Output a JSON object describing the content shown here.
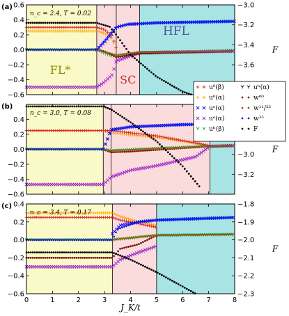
{
  "chart_data": {
    "type": "scatter",
    "shared_x": {
      "label": "J_K/t",
      "range": [
        0,
        8
      ],
      "ticks": [
        0,
        1,
        2,
        3,
        4,
        5,
        6,
        7,
        8
      ],
      "tick_labels": [
        "0",
        "1",
        "2",
        "3",
        "4",
        "5",
        "6",
        "7",
        "8"
      ]
    },
    "legend": {
      "placement": "right of panel (a), overlapping panel (b)",
      "columns": [
        [
          {
            "key": "ub",
            "label": "u⁰(β)",
            "marker": "+",
            "color": "#d62728"
          },
          {
            "key": "ua0",
            "label": "u⁰(α)",
            "marker": "+",
            "color": "#ffa500"
          },
          {
            "key": "uea",
            "label": "uᵉ(α)",
            "marker": "x",
            "color": "#0000ff"
          },
          {
            "key": "ueb",
            "label": "uᵉ(α)",
            "marker": "x",
            "color": "#9b1ec8"
          },
          {
            "key": "uhb",
            "label": "uʰ(β)",
            "marker": "y",
            "color": "#2ca02c"
          }
        ],
        [
          {
            "key": "uha",
            "label": "uʰ(α)",
            "marker": "y",
            "color": "#000000"
          },
          {
            "key": "w00",
            "label": "w⁰⁰",
            "marker": "dot",
            "color": "#7b1111"
          },
          {
            "key": "w1122",
            "label": "w¹¹/²²",
            "marker": "dot",
            "color": "#806010"
          },
          {
            "key": "w33",
            "label": "w³³",
            "marker": "dot",
            "color": "#1020e0"
          },
          {
            "key": "F",
            "label": "F",
            "marker": "dot",
            "color": "#000000"
          }
        ]
      ]
    },
    "phase_colors": {
      "FL": "#fafac8",
      "SC": "#fadcdc",
      "HFL": "#a8e4e4"
    },
    "panels": [
      {
        "id": "a",
        "tag": "(a)",
        "params": "n_c = 2.4, T = 0.02",
        "ylim": [
          -0.6,
          0.6
        ],
        "yticks": [
          -0.6,
          -0.4,
          -0.2,
          0.0,
          0.2,
          0.4,
          0.6
        ],
        "ytick_labels": [
          "−0.6",
          "−0.4",
          "−0.2",
          "0.0",
          "0.2",
          "0.4",
          "0.6"
        ],
        "y2label": "F",
        "y2lim": [
          -3.9,
          -3.0
        ],
        "y2ticks": [
          -3.0,
          -3.2,
          -3.4,
          -3.6,
          -3.8
        ],
        "y2tick_labels": [
          "−3.0",
          "−3.2",
          "−3.4",
          "−3.6",
          "−3.8"
        ],
        "regions": [
          {
            "phase": "FL",
            "from": 0,
            "to": 2.7
          },
          {
            "phase": "SC",
            "from": 2.7,
            "to": 4.35
          },
          {
            "phase": "HFL",
            "from": 4.35,
            "to": 8
          }
        ],
        "extra_boundaries": [
          3.45
        ],
        "labels": [
          {
            "text": "FL*",
            "x": 1.3,
            "y": -0.32,
            "color": "#8a8a00"
          },
          {
            "text": "SC",
            "x": 3.9,
            "y": -0.45,
            "color": "#c03030"
          },
          {
            "text": "HFL",
            "x": 5.75,
            "y": 0.2,
            "color": "#5050a0"
          }
        ],
        "series": [
          {
            "key": "ua0",
            "points": [
              [
                0,
                0.25
              ],
              [
                2.7,
                0.25
              ],
              [
                3.0,
                0.22
              ],
              [
                3.3,
                0.15
              ],
              [
                3.45,
                0.0
              ]
            ]
          },
          {
            "key": "ub",
            "points": [
              [
                0,
                0.3
              ],
              [
                2.7,
                0.3
              ],
              [
                3.0,
                0.27
              ],
              [
                3.3,
                0.18
              ],
              [
                3.45,
                0.02
              ]
            ]
          },
          {
            "key": "uhb",
            "points": [
              [
                0,
                0.0
              ],
              [
                2.7,
                0.0
              ],
              [
                3.0,
                -0.05
              ],
              [
                3.45,
                -0.1
              ],
              [
                4.35,
                -0.05
              ],
              [
                8,
                -0.01
              ]
            ]
          },
          {
            "key": "uea",
            "points": [
              [
                2.7,
                0.0
              ],
              [
                3.0,
                0.1
              ],
              [
                3.45,
                0.3
              ],
              [
                3.9,
                0.34
              ],
              [
                5.0,
                0.36
              ],
              [
                8,
                0.38
              ]
            ]
          },
          {
            "key": "ueb",
            "points": [
              [
                0,
                -0.5
              ],
              [
                2.7,
                -0.5
              ],
              [
                3.0,
                -0.43
              ],
              [
                3.3,
                -0.33
              ],
              [
                3.45,
                -0.15
              ],
              [
                4.35,
                -0.04
              ],
              [
                5.5,
                -0.03
              ],
              [
                8,
                -0.02
              ]
            ]
          },
          {
            "key": "w00",
            "points": [
              [
                0,
                0.0
              ],
              [
                2.7,
                0.0
              ],
              [
                3.0,
                -0.02
              ],
              [
                3.45,
                -0.1
              ],
              [
                4.35,
                -0.05
              ],
              [
                8,
                -0.02
              ]
            ]
          },
          {
            "key": "w1122",
            "points": [
              [
                0,
                0.0
              ],
              [
                2.7,
                0.0
              ],
              [
                3.45,
                -0.07
              ],
              [
                4.35,
                -0.03
              ],
              [
                8,
                -0.02
              ]
            ]
          },
          {
            "key": "w33",
            "points": [
              [
                0,
                0.0
              ],
              [
                2.7,
                0.0
              ],
              [
                3.0,
                0.12
              ],
              [
                3.45,
                0.3
              ],
              [
                3.9,
                0.34
              ],
              [
                5.0,
                0.36
              ],
              [
                8,
                0.38
              ]
            ]
          }
        ],
        "free_energy": [
          [
            0,
            -3.18
          ],
          [
            2.7,
            -3.18
          ],
          [
            3.2,
            -3.22
          ],
          [
            3.45,
            -3.3
          ],
          [
            4.0,
            -3.5
          ],
          [
            5.0,
            -3.72
          ],
          [
            6.0,
            -3.87
          ],
          [
            6.35,
            -3.9
          ]
        ]
      },
      {
        "id": "b",
        "tag": "(b)",
        "params": "n_c = 3.0, T = 0.08",
        "ylim": [
          -0.6,
          0.6
        ],
        "yticks": [
          -0.6,
          -0.4,
          -0.2,
          0.0,
          0.2,
          0.4
        ],
        "ytick_labels": [
          "−0.6",
          "−0.4",
          "−0.2",
          "0.0",
          "0.2",
          "0.4"
        ],
        "y2label": "F",
        "y2lim": [
          -3.4,
          -2.5
        ],
        "y2ticks": [
          -2.6,
          -2.8,
          -3.0,
          -3.2
        ],
        "y2tick_labels": [
          "−2.6",
          "−2.8",
          "−3.0",
          "−3.2"
        ],
        "regions": [
          {
            "phase": "FL",
            "from": 0,
            "to": 2.95
          },
          {
            "phase": "SC",
            "from": 2.95,
            "to": 7.05
          },
          {
            "phase": "HFL",
            "from": 7.05,
            "to": 8
          }
        ],
        "extra_boundaries": [
          3.25
        ],
        "labels": [],
        "series": [
          {
            "key": "ua0",
            "points": [
              [
                0,
                0.25
              ],
              [
                2.95,
                0.25
              ],
              [
                3.25,
                0.22
              ],
              [
                5.0,
                0.16
              ],
              [
                6.5,
                0.08
              ],
              [
                7.05,
                0.04
              ],
              [
                8,
                0.04
              ]
            ]
          },
          {
            "key": "ub",
            "points": [
              [
                0,
                0.25
              ],
              [
                2.95,
                0.25
              ],
              [
                3.25,
                0.25
              ],
              [
                5.0,
                0.18
              ],
              [
                7.05,
                0.05
              ]
            ]
          },
          {
            "key": "uhb",
            "points": [
              [
                0,
                0.0
              ],
              [
                2.95,
                0.0
              ],
              [
                3.25,
                -0.02
              ],
              [
                5.0,
                0.01
              ],
              [
                7.05,
                0.04
              ],
              [
                8,
                0.05
              ]
            ]
          },
          {
            "key": "uea",
            "points": [
              [
                2.95,
                0.0
              ],
              [
                3.25,
                0.26
              ],
              [
                4.0,
                0.3
              ],
              [
                6.0,
                0.33
              ],
              [
                8,
                0.34
              ]
            ]
          },
          {
            "key": "ueb",
            "points": [
              [
                0,
                -0.47
              ],
              [
                2.95,
                -0.47
              ],
              [
                3.25,
                -0.37
              ],
              [
                4.0,
                -0.28
              ],
              [
                5.0,
                -0.22
              ],
              [
                6.5,
                -0.1
              ],
              [
                7.05,
                0.04
              ],
              [
                8,
                0.05
              ]
            ]
          },
          {
            "key": "w00",
            "points": [
              [
                0,
                0.0
              ],
              [
                2.95,
                0.0
              ],
              [
                3.25,
                -0.04
              ],
              [
                4.0,
                -0.03
              ],
              [
                7.05,
                0.04
              ],
              [
                8,
                0.05
              ]
            ]
          },
          {
            "key": "w1122",
            "points": [
              [
                0,
                0.0
              ],
              [
                2.95,
                0.0
              ],
              [
                3.25,
                -0.02
              ],
              [
                7.05,
                0.04
              ],
              [
                8,
                0.05
              ]
            ]
          },
          {
            "key": "w33",
            "points": [
              [
                0,
                0.0
              ],
              [
                2.95,
                0.0
              ],
              [
                3.1,
                0.12
              ],
              [
                3.25,
                0.26
              ],
              [
                4.0,
                0.3
              ],
              [
                6.0,
                0.33
              ],
              [
                8,
                0.34
              ]
            ]
          }
        ],
        "free_energy": [
          [
            0,
            -2.52
          ],
          [
            2.95,
            -2.52
          ],
          [
            3.25,
            -2.55
          ],
          [
            4.0,
            -2.68
          ],
          [
            5.0,
            -2.87
          ],
          [
            6.0,
            -3.12
          ],
          [
            6.7,
            -3.34
          ]
        ]
      },
      {
        "id": "c",
        "tag": "(c)",
        "params": "n_c = 3.4, T = 0.17",
        "ylim": [
          -0.6,
          0.4
        ],
        "yticks": [
          -0.6,
          -0.4,
          -0.2,
          0.0,
          0.2,
          0.4
        ],
        "ytick_labels": [
          "−0.6",
          "−0.4",
          "−0.2",
          "0.0",
          "0.2",
          "0.4"
        ],
        "y2label": "F",
        "y2lim": [
          -2.3,
          -1.8
        ],
        "y2ticks": [
          -1.8,
          -1.9,
          -2.0,
          -2.1,
          -2.2,
          -2.3
        ],
        "y2tick_labels": [
          "−1.8",
          "−1.9",
          "−2.0",
          "−2.1",
          "−2.2",
          "−2.3"
        ],
        "regions": [
          {
            "phase": "FL",
            "from": 0,
            "to": 3.3
          },
          {
            "phase": "SC",
            "from": 3.3,
            "to": 5.0
          },
          {
            "phase": "HFL",
            "from": 5.0,
            "to": 8
          }
        ],
        "extra_boundaries": [],
        "labels": [],
        "series": [
          {
            "key": "ua0",
            "points": [
              [
                0,
                0.3
              ],
              [
                3.3,
                0.3
              ],
              [
                3.6,
                0.26
              ],
              [
                4.3,
                0.2
              ],
              [
                5.0,
                0.16
              ]
            ]
          },
          {
            "key": "ub",
            "points": [
              [
                0,
                0.25
              ],
              [
                3.3,
                0.25
              ],
              [
                3.6,
                0.22
              ],
              [
                4.3,
                0.18
              ],
              [
                5.0,
                0.14
              ]
            ]
          },
          {
            "key": "uhb",
            "points": [
              [
                0,
                0.0
              ],
              [
                3.3,
                0.0
              ],
              [
                4.0,
                0.02
              ],
              [
                5.0,
                0.05
              ],
              [
                8,
                0.06
              ]
            ]
          },
          {
            "key": "uea",
            "points": [
              [
                3.3,
                0.07
              ],
              [
                3.6,
                0.16
              ],
              [
                4.3,
                0.2
              ],
              [
                5.0,
                0.22
              ],
              [
                8,
                0.25
              ]
            ]
          },
          {
            "key": "ueb",
            "points": [
              [
                0,
                -0.3
              ],
              [
                3.3,
                -0.3
              ],
              [
                3.6,
                -0.22
              ],
              [
                4.3,
                -0.14
              ],
              [
                5.0,
                -0.07
              ]
            ]
          },
          {
            "key": "w00",
            "points": [
              [
                0,
                -0.2
              ],
              [
                3.3,
                -0.2
              ],
              [
                3.6,
                -0.1
              ],
              [
                4.3,
                -0.05
              ],
              [
                5.0,
                0.05
              ],
              [
                8,
                0.06
              ]
            ]
          },
          {
            "key": "w1122",
            "points": [
              [
                0,
                0.0
              ],
              [
                3.3,
                0.0
              ],
              [
                5.0,
                0.05
              ],
              [
                8,
                0.06
              ]
            ]
          },
          {
            "key": "w33",
            "points": [
              [
                0,
                0.0
              ],
              [
                3.3,
                0.0
              ],
              [
                3.5,
                0.12
              ],
              [
                4.3,
                0.2
              ],
              [
                5.0,
                0.22
              ],
              [
                8,
                0.25
              ]
            ]
          }
        ],
        "free_energy": [
          [
            0,
            -2.07
          ],
          [
            3.3,
            -2.07
          ],
          [
            4.0,
            -2.11
          ],
          [
            5.0,
            -2.18
          ],
          [
            6.0,
            -2.26
          ],
          [
            6.5,
            -2.3
          ]
        ]
      }
    ]
  }
}
